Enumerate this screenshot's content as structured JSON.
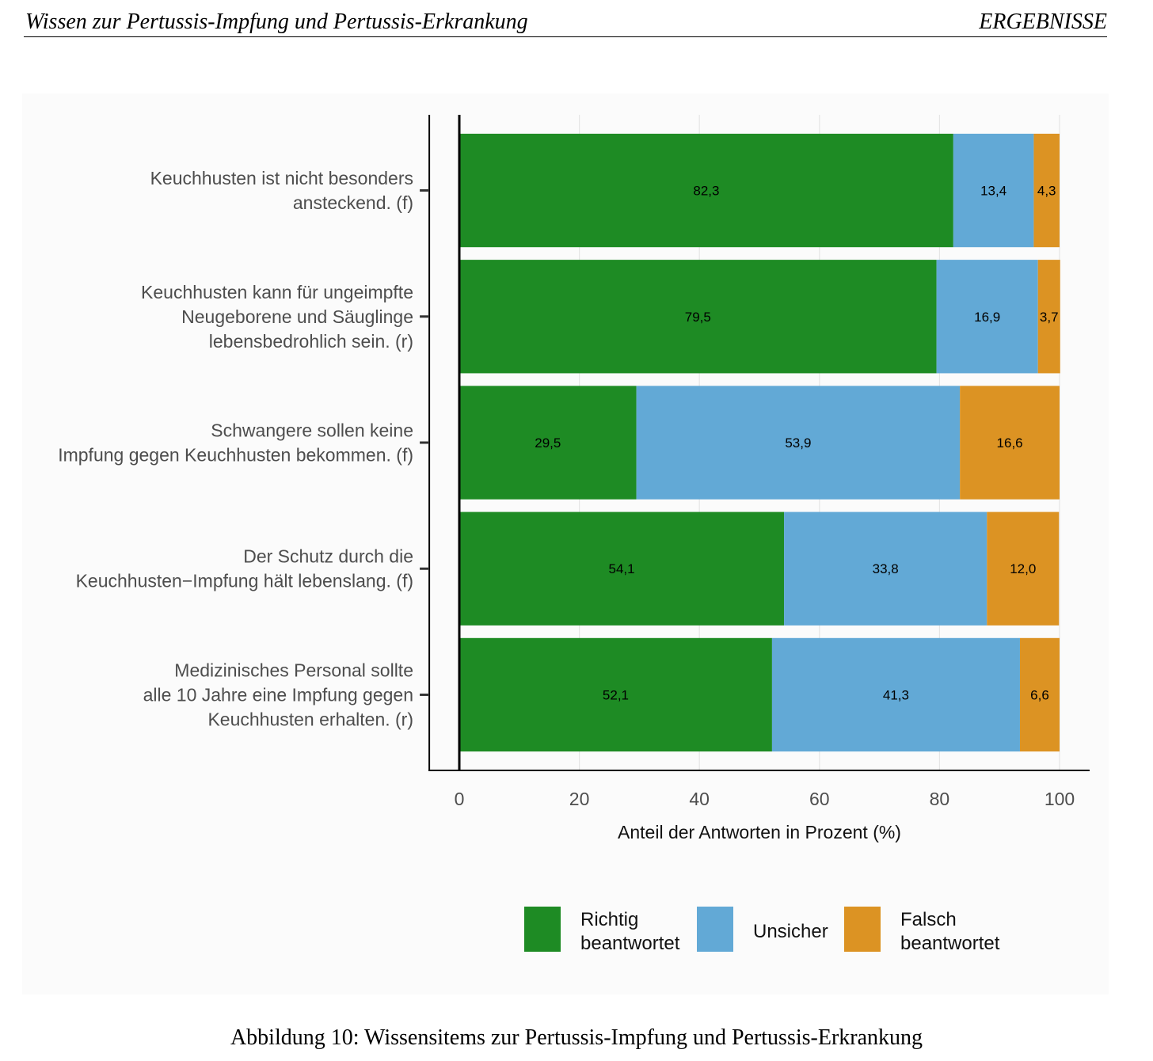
{
  "header": {
    "left": "Wissen zur Pertussis-Impfung und Pertussis-Erkrankung",
    "right": "ERGEBNISSE"
  },
  "caption": "Abbildung 10: Wissensitems zur Pertussis-Impfung und Pertussis-Erkrankung",
  "chart_data": {
    "type": "bar",
    "horizontal": true,
    "stacked": true,
    "categories": [
      [
        "Keuchhusten ist nicht besonders",
        "ansteckend. (f)"
      ],
      [
        "Keuchhusten kann für ungeimpfte",
        "Neugeborene und Säuglinge",
        "lebensbedrohlich sein. (r)"
      ],
      [
        "Schwangere sollen keine",
        "Impfung gegen Keuchhusten bekommen. (f)"
      ],
      [
        "Der Schutz durch die",
        "Keuchhusten−Impfung hält lebenslang. (f)"
      ],
      [
        "Medizinisches Personal sollte",
        "alle 10 Jahre eine Impfung gegen",
        "Keuchhusten erhalten. (r)"
      ]
    ],
    "series": [
      {
        "name": [
          "Richtig",
          "beantwortet"
        ],
        "color": "#1e8b24",
        "values": [
          82.3,
          79.5,
          29.5,
          54.1,
          52.1
        ]
      },
      {
        "name": [
          "Unsicher"
        ],
        "color": "#62a9d6",
        "values": [
          13.4,
          16.9,
          53.9,
          33.8,
          41.3
        ]
      },
      {
        "name": [
          "Falsch",
          "beantwortet"
        ],
        "color": "#dc9323",
        "values": [
          4.3,
          3.7,
          16.6,
          12.0,
          6.6
        ]
      }
    ],
    "xlabel": "Anteil der Antworten in Prozent (%)",
    "ylabel": "",
    "xticks": [
      0,
      20,
      40,
      60,
      80,
      100
    ],
    "xlim": [
      -5,
      105
    ],
    "grid": true,
    "legend": "bottom"
  }
}
